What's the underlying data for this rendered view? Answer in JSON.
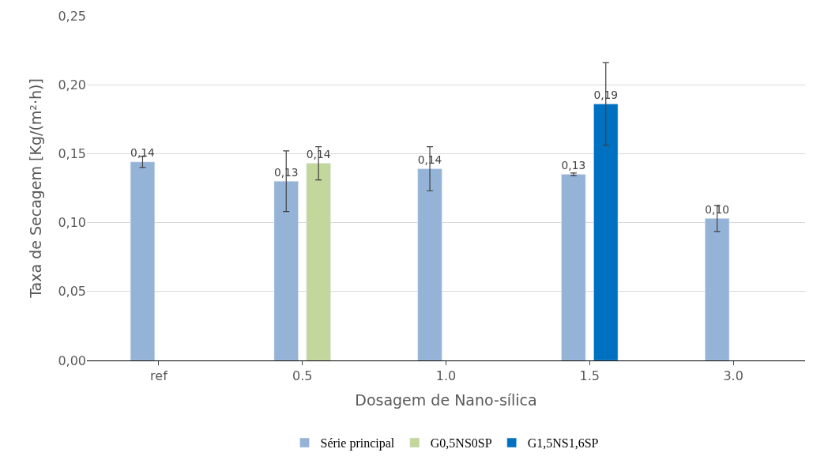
{
  "chart_data": {
    "type": "bar",
    "xlabel": "Dosagem de Nano-sílica",
    "ylabel": "Taxa de Secagem [Kg/(m²·h)]",
    "categories": [
      "ref",
      "0.5",
      "1.0",
      "1.5",
      "3.0"
    ],
    "series": [
      {
        "name": "Série principal",
        "color": "#95b3d7",
        "values": [
          0.144,
          0.13,
          0.139,
          0.135,
          0.103
        ],
        "errors": [
          0.004,
          0.022,
          0.016,
          0.001,
          0.0095
        ],
        "value_labels": [
          "0,14",
          "0,13",
          "0,14",
          "0,13",
          "0,10"
        ]
      },
      {
        "name": "G0,5NS0SP",
        "color": "#c3d69b",
        "values": [
          null,
          0.143,
          null,
          null,
          null
        ],
        "errors": [
          null,
          0.012,
          null,
          null,
          null
        ],
        "value_labels": [
          null,
          "0,14",
          null,
          null,
          null
        ]
      },
      {
        "name": "G1,5NS1,6SP",
        "color": "#0070c0",
        "values": [
          null,
          null,
          null,
          0.186,
          null
        ],
        "errors": [
          null,
          null,
          null,
          0.03,
          null
        ],
        "value_labels": [
          null,
          null,
          null,
          "0,19",
          null
        ]
      }
    ],
    "ylim": [
      0,
      0.25
    ],
    "yticks": [
      {
        "value": 0,
        "label": "0,00"
      },
      {
        "value": 0.05,
        "label": "0,05"
      },
      {
        "value": 0.1,
        "label": "0,10"
      },
      {
        "value": 0.15,
        "label": "0,15"
      },
      {
        "value": 0.2,
        "label": "0,20"
      },
      {
        "value": 0.25,
        "label": "0,25"
      }
    ],
    "grid": "y",
    "legend": "bottom"
  }
}
